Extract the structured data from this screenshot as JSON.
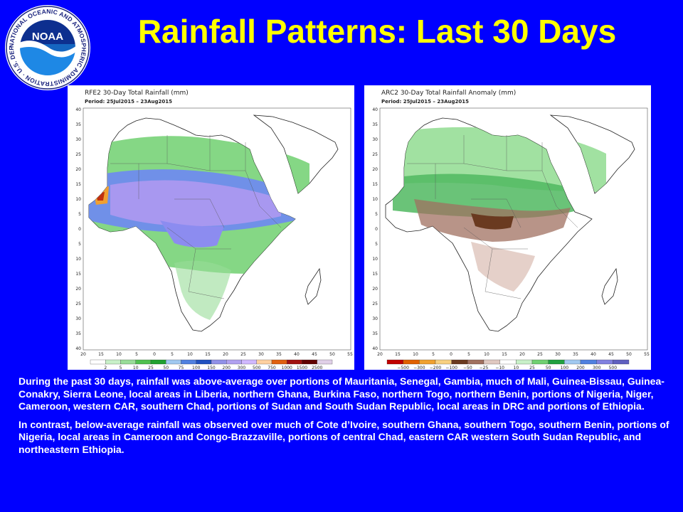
{
  "header": {
    "title": "Rainfall Patterns: Last 30 Days",
    "logo": {
      "icon": "noaa-logo-icon",
      "wordmark": "NOAA",
      "ring_text": "NATIONAL OCEANIC AND ATMOSPHERIC ADMINISTRATION · U.S. DEPARTMENT OF COMMERCE"
    }
  },
  "maps": [
    {
      "title": "RFE2 30-Day Total Rainfall (mm)",
      "period": "Period: 25Jul2015 – 23Aug2015",
      "lon_ticks": [
        "20",
        "15",
        "10",
        "5",
        "0",
        "5",
        "10",
        "15",
        "20",
        "25",
        "30",
        "35",
        "40",
        "45",
        "50",
        "55"
      ],
      "lat_ticks": [
        "40",
        "35",
        "30",
        "25",
        "20",
        "15",
        "10",
        "5",
        "0",
        "5",
        "10",
        "15",
        "20",
        "25",
        "30",
        "35",
        "40"
      ],
      "colorbar_labels": [
        "2",
        "5",
        "10",
        "25",
        "50",
        "75",
        "100",
        "150",
        "200",
        "300",
        "500",
        "750",
        "1000",
        "1500",
        "2500"
      ],
      "colorbar_colors": [
        "#ffffff",
        "#c8f0c8",
        "#98dc98",
        "#50c050",
        "#20a030",
        "#a0c8f0",
        "#5080e0",
        "#2050c0",
        "#9090e8",
        "#b0a0f0",
        "#d0b8ff",
        "#ffd0a0",
        "#e06010",
        "#a01010",
        "#600000",
        "#e0d0e8"
      ]
    },
    {
      "title": "ARC2 30-Day Total Rainfall Anomaly (mm)",
      "period": "Period: 25Jul2015 – 23Aug2015",
      "lon_ticks": [
        "20",
        "15",
        "10",
        "5",
        "0",
        "5",
        "10",
        "15",
        "20",
        "25",
        "30",
        "35",
        "40",
        "45",
        "50",
        "55"
      ],
      "lat_ticks": [
        "40",
        "35",
        "30",
        "25",
        "20",
        "15",
        "10",
        "5",
        "0",
        "5",
        "10",
        "15",
        "20",
        "25",
        "30",
        "35",
        "40"
      ],
      "colorbar_labels": [
        "−500",
        "−300",
        "−200",
        "−100",
        "−50",
        "−25",
        "−10",
        "10",
        "25",
        "50",
        "100",
        "200",
        "300",
        "500"
      ],
      "colorbar_colors": [
        "#c00000",
        "#e06000",
        "#f0a030",
        "#f8d080",
        "#6a3a20",
        "#a07060",
        "#e0c8c0",
        "#ffffff",
        "#c8f0c8",
        "#70d070",
        "#20a040",
        "#a0c8f0",
        "#5080e0",
        "#8080e0",
        "#6060c0"
      ]
    }
  ],
  "caption": {
    "paragraph1": "During the past 30 days, rainfall was above-average over portions of Mauritania, Senegal, Gambia, much of Mali, Guinea-Bissau, Guinea-Conakry, Sierra Leone, local areas in Liberia, northern Ghana, Burkina Faso, northern Togo, northern Benin, portions of Nigeria, Niger, Cameroon, western CAR, southern Chad, portions of Sudan and South Sudan Republic, local areas in DRC and portions of Ethiopia.",
    "paragraph2": "In contrast, below-average rainfall was observed over much of Cote d’Ivoire, southern Ghana, southern Togo, southern Benin, portions of Nigeria, local areas in Cameroon and Congo-Brazzaville, portions of central Chad, eastern CAR western South Sudan Republic, and northeastern Ethiopia."
  }
}
